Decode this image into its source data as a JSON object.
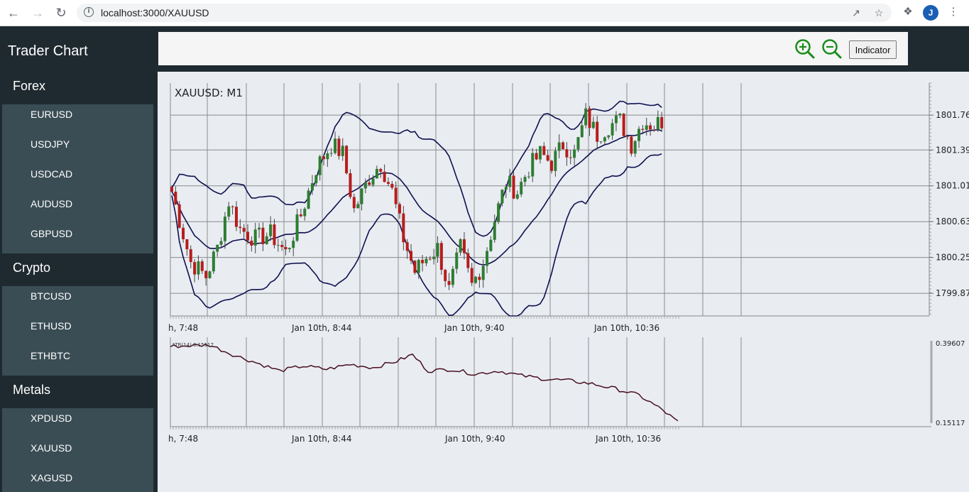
{
  "browser": {
    "url": "localhost:3000/XAUUSD",
    "avatar_letter": "J"
  },
  "app": {
    "title": "Trader Chart"
  },
  "sidebar": {
    "sections": [
      {
        "title": "Forex",
        "items": [
          "EURUSD",
          "USDJPY",
          "USDCAD",
          "AUDUSD",
          "GBPUSD"
        ]
      },
      {
        "title": "Crypto",
        "items": [
          "BTCUSD",
          "ETHUSD",
          "ETHBTC"
        ]
      },
      {
        "title": "Metals",
        "items": [
          "XPDUSD",
          "XAUUSD",
          "XAGUSD"
        ]
      }
    ]
  },
  "toolbar": {
    "zoom_in_icon": "zoom-in-icon",
    "zoom_out_icon": "zoom-out-icon",
    "indicator_label": "Indicator"
  },
  "colors": {
    "sidebar_bg": "#1f2a30",
    "sidebar_list_bg": "#3a4d55",
    "bull_candle": "#2e7d32",
    "bear_candle": "#b71c1c",
    "bollinger": "#101050",
    "atr_line": "#4a1020",
    "zoom_icon": "#1a8c1a"
  },
  "chart_data": [
    {
      "type": "candlestick",
      "title": "XAUUSD: M1",
      "y_ticks": [
        "1801.76",
        "1801.39",
        "1801.01",
        "1800.63",
        "1800.25",
        "1799.87"
      ],
      "x_ticks": [
        "h, 7:48",
        "Jan 10th, 8:44",
        "Jan 10th, 9:40",
        "Jan 10th, 10:36"
      ],
      "indicators": [
        "Bollinger Bands"
      ],
      "ylim": [
        1799.63,
        1802.1
      ]
    },
    {
      "type": "line",
      "title": "ATR(14) 0.15117",
      "y_ticks": [
        "0.39607",
        "0.15117"
      ],
      "x_ticks": [
        "h, 7:48",
        "Jan 10th, 8:44",
        "Jan 10th, 9:40",
        "Jan 10th, 10:36"
      ],
      "ylim": [
        0.15117,
        0.39607
      ]
    }
  ]
}
